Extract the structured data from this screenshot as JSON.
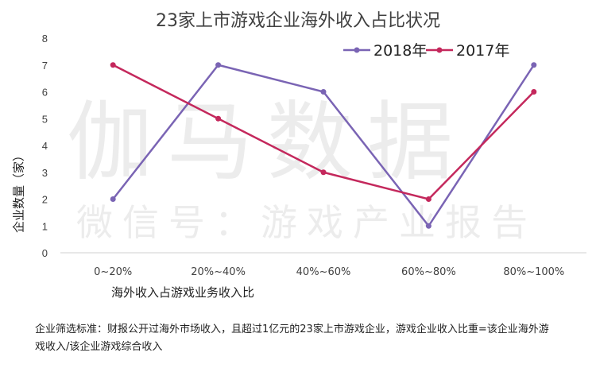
{
  "title": "23家上市游戏企业海外收入占比状况",
  "watermark": {
    "main": "伽马数据",
    "sub": "微信号：游戏产业报告"
  },
  "note": "企业筛选标准：财报公开过海外市场收入，且超过1亿元的23家上市游戏企业，游戏企业收入比重=该企业海外游戏收入/该企业游戏综合收入",
  "chart_data": {
    "type": "line",
    "title": "23家上市游戏企业海外收入占比状况",
    "xlabel": "海外收入占游戏业务收入比",
    "ylabel": "企业数量（家）",
    "categories": [
      "0~20%",
      "20%~40%",
      "40%~60%",
      "60%~80%",
      "80%~100%"
    ],
    "ylim": [
      0,
      8
    ],
    "yticks": [
      0,
      1,
      2,
      3,
      4,
      5,
      6,
      7,
      8
    ],
    "legend_position": "top-right",
    "grid": false,
    "series": [
      {
        "name": "2018年",
        "values": [
          2,
          7,
          6,
          1,
          7
        ],
        "color": "#7a64b4"
      },
      {
        "name": "2017年",
        "values": [
          7,
          5,
          3,
          2,
          6
        ],
        "color": "#c4285c"
      }
    ]
  }
}
